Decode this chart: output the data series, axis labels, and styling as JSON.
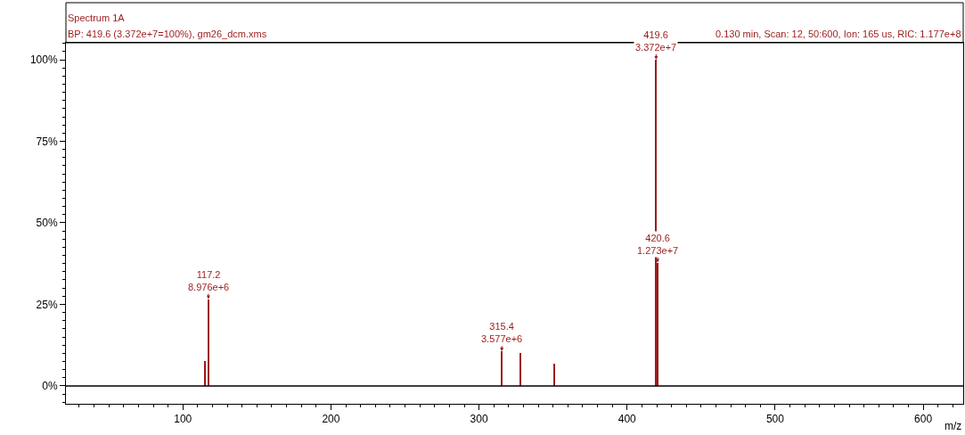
{
  "chart_data": {
    "type": "bar",
    "title": "Spectrum 1A",
    "subtitle": "BP: 419.6 (3.372e+7=100%), gm26_dcm.xms",
    "xlabel": "m/z",
    "x": [
      115,
      117.2,
      315.4,
      328,
      351,
      419.6,
      420.6
    ],
    "values": [
      7.7,
      26.6,
      10.6,
      10.1,
      6.8,
      100,
      37.8
    ],
    "color": "#9b1b1b",
    "xlim": [
      21,
      627
    ],
    "xticks": [
      100,
      200,
      300,
      400,
      500,
      600
    ],
    "ylim": [
      -5.5,
      105.2
    ],
    "yticks": [
      {
        "value": 0,
        "label": "0%"
      },
      {
        "value": 25,
        "label": "25%"
      },
      {
        "value": 50,
        "label": "50%"
      },
      {
        "value": 75,
        "label": "75%"
      },
      {
        "value": 100,
        "label": "100%"
      }
    ],
    "ref_lines": [
      {
        "axis": "y",
        "value": 0,
        "color": "#000000"
      }
    ],
    "annotations": [
      "0.130 min, Scan: 12, 50:600, Ion: 165 us, RIC: 1.177e+8",
      {
        "text": "117.2\n8.976e+6",
        "x": 117.2,
        "y": 26.6
      },
      {
        "text": "315.4\n3.577e+6",
        "x": 315.4,
        "y": 10.6
      },
      {
        "text": "419.6\n3.372e+7",
        "x": 419.6,
        "y": 100
      },
      {
        "text": "420.6\n1.273e+7",
        "x": 420.6,
        "y": 37.8
      }
    ]
  }
}
